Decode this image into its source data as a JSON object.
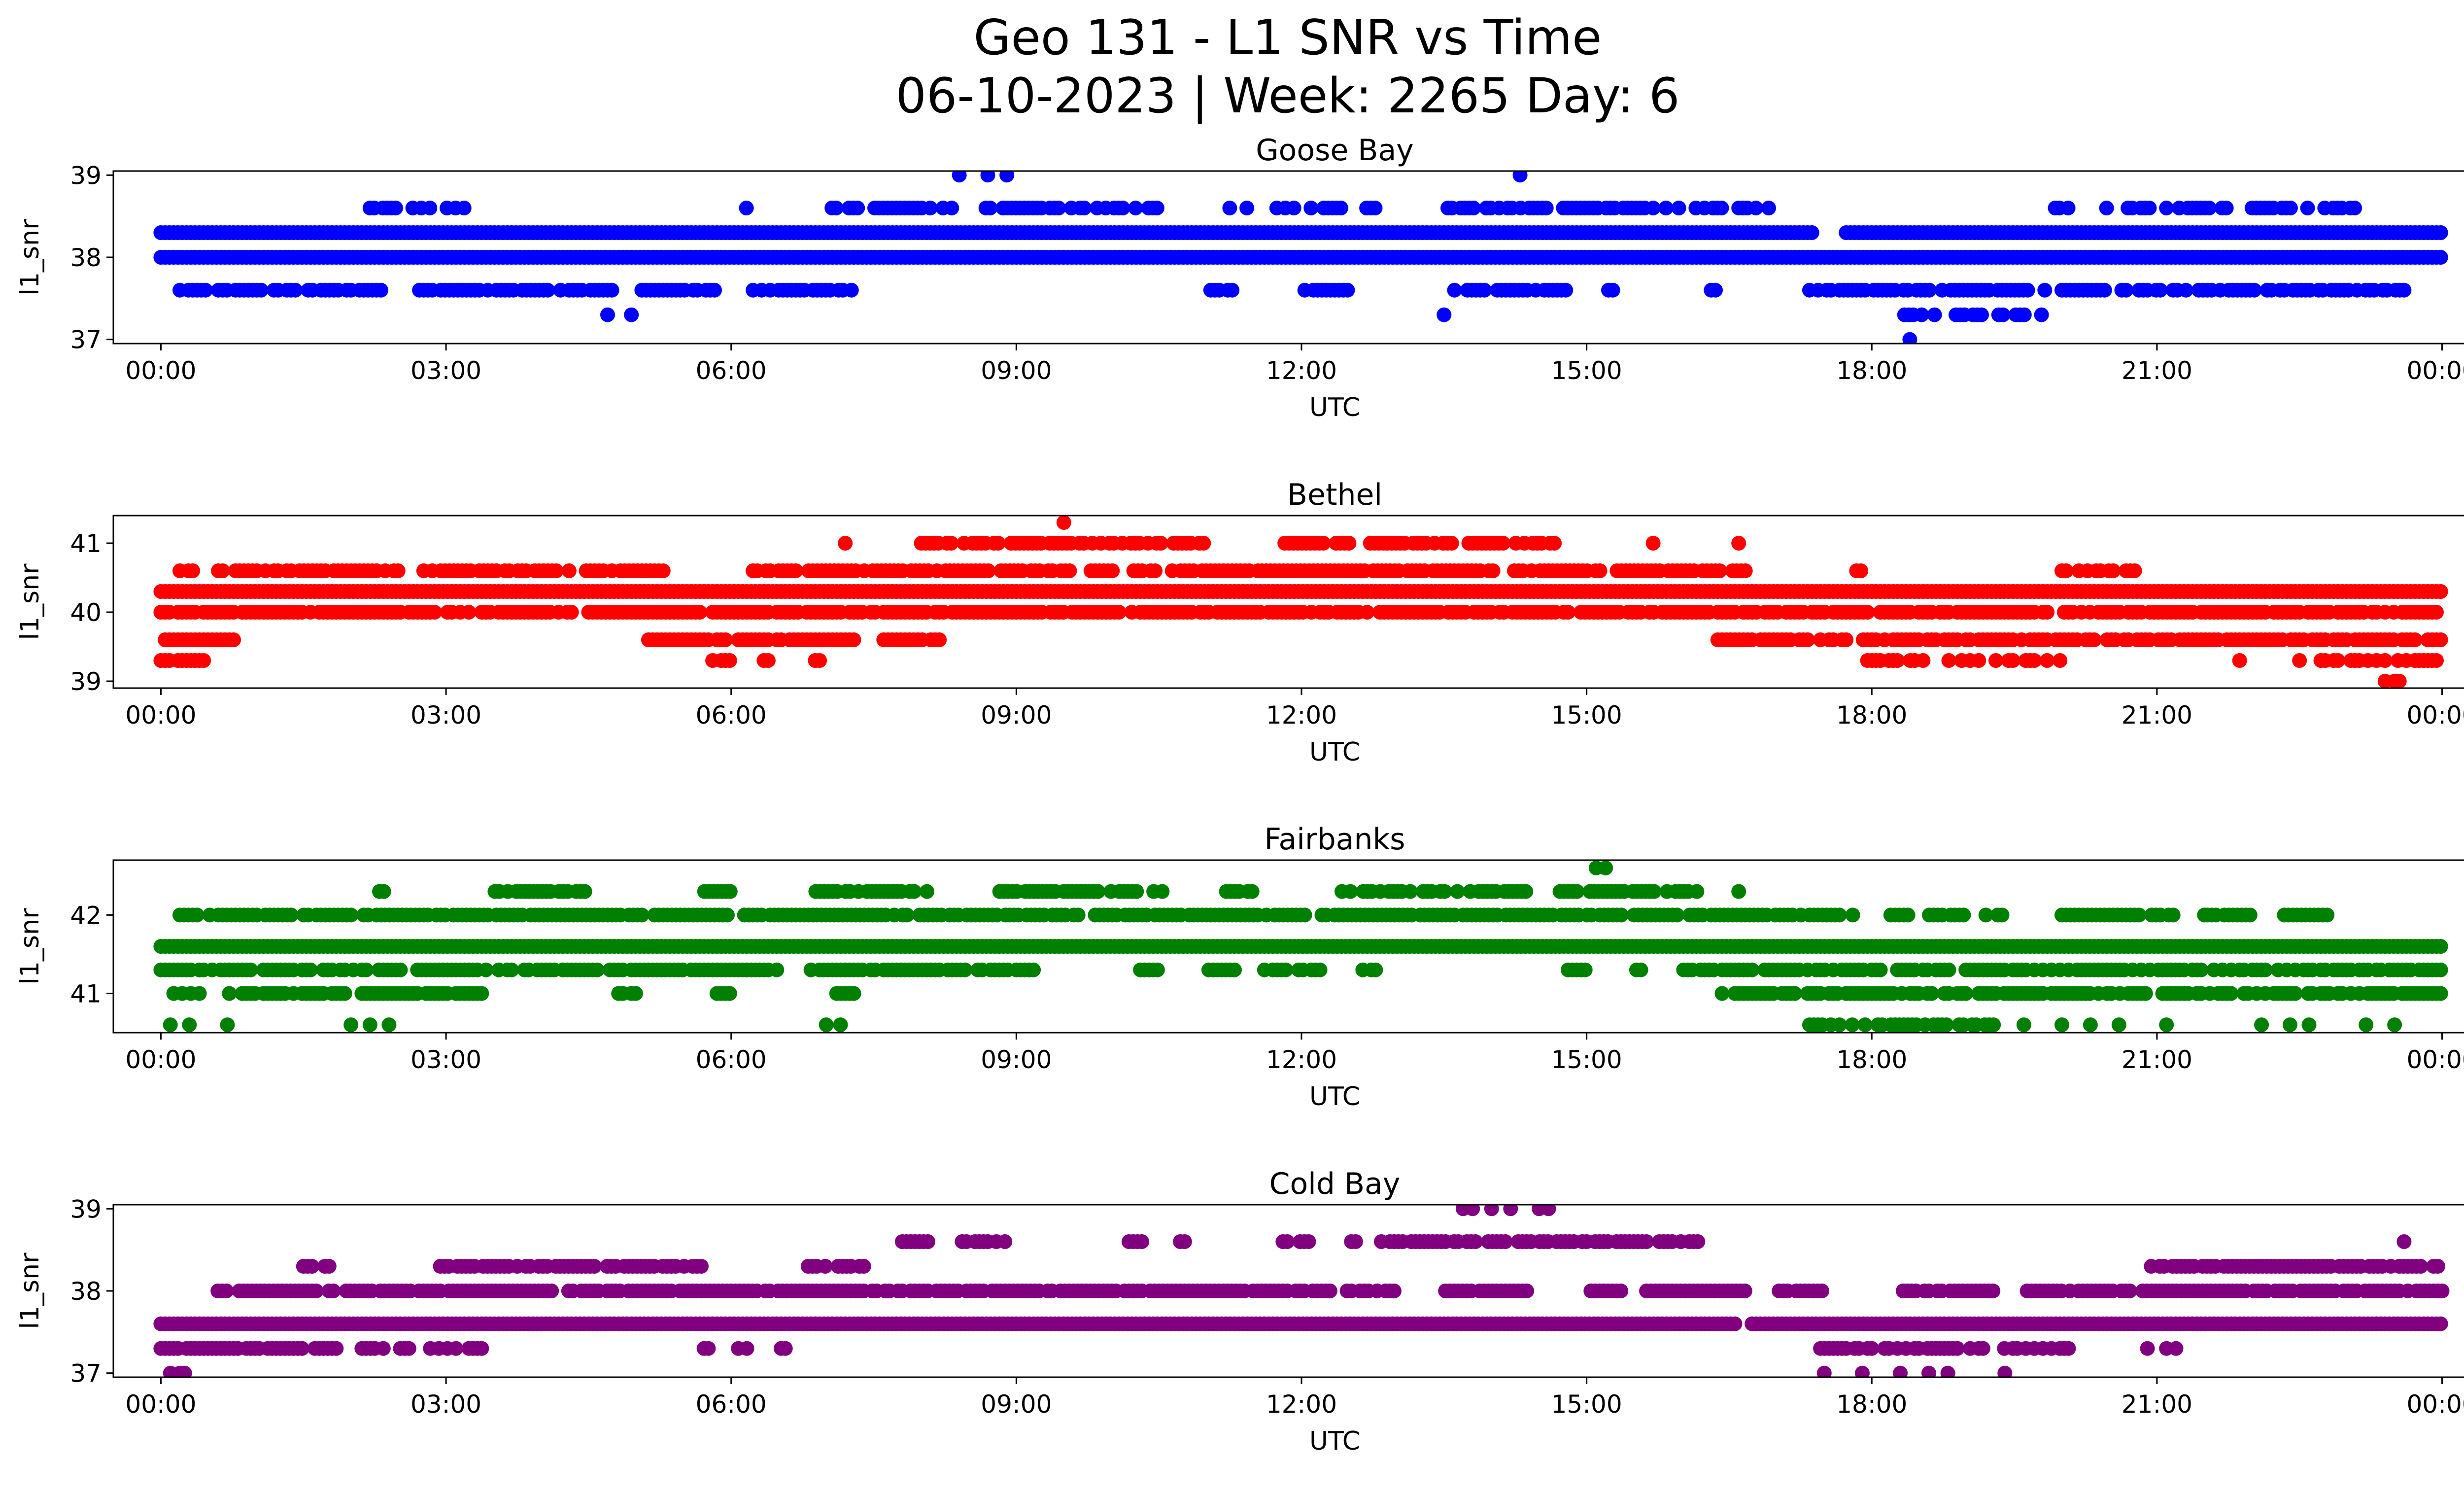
{
  "figure": {
    "title_line1": "Geo 131 - L1 SNR vs Time",
    "title_line2": "06-10-2023 | Week: 2265 Day: 6"
  },
  "chart_data": [
    {
      "type": "scatter",
      "title": "Goose Bay",
      "xlabel": "UTC",
      "ylabel": "l1_snr",
      "xlim_hours": [
        -0.5,
        25.2
      ],
      "ylim": [
        36.95,
        39.05
      ],
      "yticks": [
        37,
        38,
        39
      ],
      "xticks": [
        "00:00",
        "03:00",
        "06:00",
        "09:00",
        "12:00",
        "15:00",
        "18:00",
        "21:00",
        "00:00"
      ],
      "color": "#0000ff",
      "bands": [
        {
          "y": 38.0,
          "from": 0.0,
          "to": 24.0,
          "gaps": []
        },
        {
          "y": 38.3,
          "from": 0.0,
          "to": 24.0,
          "gaps": [
            [
              17.4,
              17.7
            ]
          ]
        },
        {
          "y": 37.6,
          "from": 0.2,
          "to": 23.6,
          "gaps": [
            [
              2.4,
              2.7
            ],
            [
              5.9,
              6.2
            ],
            [
              7.3,
              9.1
            ],
            [
              9.2,
              10.2
            ],
            [
              10.3,
              11.0
            ],
            [
              11.3,
              12.0
            ],
            [
              12.5,
              13.5
            ],
            [
              14.8,
              15.2
            ],
            [
              15.3,
              16.3
            ],
            [
              16.4,
              17.2
            ]
          ],
          "density": 0.75
        },
        {
          "y": 38.6,
          "from": 2.2,
          "to": 23.1,
          "gaps": [
            [
              3.2,
              5.9
            ],
            [
              6.2,
              7.0
            ],
            [
              10.5,
              11.2
            ],
            [
              12.8,
              13.5
            ],
            [
              17.0,
              19.9
            ],
            [
              20.2,
              20.4
            ],
            [
              21.8,
              22.0
            ]
          ],
          "density": 0.6
        },
        {
          "y": 37.3,
          "from": 18.3,
          "to": 19.9,
          "gaps": [],
          "density": 0.6
        }
      ],
      "extra_points": [
        [
          4.7,
          37.3
        ],
        [
          4.95,
          37.3
        ],
        [
          13.5,
          37.3
        ],
        [
          18.4,
          37.0
        ],
        [
          8.4,
          39.0
        ],
        [
          8.7,
          39.0
        ],
        [
          8.9,
          39.0
        ],
        [
          14.3,
          39.0
        ]
      ]
    },
    {
      "type": "scatter",
      "title": "Bethel",
      "xlabel": "UTC",
      "ylabel": "l1_snr",
      "xlim_hours": [
        -0.5,
        25.2
      ],
      "ylim": [
        38.9,
        41.4
      ],
      "yticks": [
        39,
        40,
        41
      ],
      "xticks": [
        "00:00",
        "03:00",
        "06:00",
        "09:00",
        "12:00",
        "15:00",
        "18:00",
        "21:00",
        "00:00"
      ],
      "color": "#ff0000",
      "bands": [
        {
          "y": 40.3,
          "from": 0.0,
          "to": 24.0,
          "gaps": []
        },
        {
          "y": 40.0,
          "from": 0.0,
          "to": 24.0,
          "gaps": [],
          "density": 0.85
        },
        {
          "y": 40.6,
          "from": 0.2,
          "to": 20.8,
          "gaps": [
            [
              0.35,
              0.6
            ],
            [
              2.5,
              2.7
            ],
            [
              5.3,
              6.2
            ],
            [
              16.7,
              17.8
            ],
            [
              17.9,
              20.0
            ]
          ],
          "density": 0.8
        },
        {
          "y": 39.6,
          "from": 0.0,
          "to": 24.0,
          "gaps": [
            [
              0.8,
              5.1
            ],
            [
              7.3,
              7.6
            ],
            [
              8.2,
              16.3
            ]
          ],
          "density": 0.85
        },
        {
          "y": 39.3,
          "from": 0.0,
          "to": 24.0,
          "gaps": [
            [
              0.5,
              5.8
            ],
            [
              6.0,
              6.3
            ],
            [
              6.5,
              6.8
            ],
            [
              7.0,
              17.9
            ],
            [
              18.6,
              18.8
            ],
            [
              20.0,
              21.8
            ],
            [
              21.9,
              22.4
            ]
          ],
          "density": 0.6
        },
        {
          "y": 41.0,
          "from": 8.0,
          "to": 14.7,
          "gaps": [
            [
              11.0,
              11.8
            ],
            [
              12.5,
              12.7
            ]
          ],
          "density": 0.75
        }
      ],
      "extra_points": [
        [
          7.2,
          41.0
        ],
        [
          12.9,
          41.0
        ],
        [
          15.7,
          41.0
        ],
        [
          16.6,
          41.0
        ],
        [
          9.5,
          41.3
        ],
        [
          23.4,
          39.0
        ],
        [
          23.5,
          39.0
        ],
        [
          23.55,
          39.0
        ]
      ]
    },
    {
      "type": "scatter",
      "title": "Fairbanks",
      "xlabel": "UTC",
      "ylabel": "l1_snr",
      "xlim_hours": [
        -0.5,
        25.2
      ],
      "ylim": [
        40.5,
        42.7
      ],
      "yticks": [
        41,
        42
      ],
      "xticks": [
        "00:00",
        "03:00",
        "06:00",
        "09:00",
        "12:00",
        "15:00",
        "18:00",
        "21:00",
        "00:00"
      ],
      "color": "#008000",
      "bands": [
        {
          "y": 41.6,
          "from": 0.0,
          "to": 24.0,
          "gaps": []
        },
        {
          "y": 41.3,
          "from": 0.0,
          "to": 24.0,
          "gaps": [
            [
              6.5,
              6.8
            ],
            [
              9.2,
              10.3
            ],
            [
              10.5,
              11.0
            ],
            [
              11.3,
              11.6
            ],
            [
              12.2,
              12.6
            ],
            [
              12.8,
              14.8
            ],
            [
              15.0,
              15.5
            ],
            [
              15.6,
              16.0
            ]
          ],
          "density": 0.8
        },
        {
          "y": 42.0,
          "from": 0.2,
          "to": 22.8,
          "gaps": [
            [
              0.4,
              0.5
            ],
            [
              1.4,
              1.5
            ],
            [
              2.0,
              2.1
            ],
            [
              6.0,
              6.1
            ],
            [
              17.7,
              18.2
            ],
            [
              18.4,
              18.6
            ],
            [
              19.0,
              19.3
            ],
            [
              19.4,
              20.0
            ],
            [
              21.2,
              21.5
            ],
            [
              22.0,
              22.3
            ]
          ],
          "density": 0.85
        },
        {
          "y": 41.0,
          "from": 0.0,
          "to": 24.0,
          "gaps": [
            [
              0.5,
              0.7
            ],
            [
              3.4,
              4.8
            ],
            [
              5.0,
              5.8
            ],
            [
              6.1,
              7.0
            ],
            [
              7.3,
              16.4
            ]
          ],
          "density": 0.75
        },
        {
          "y": 42.3,
          "from": 2.3,
          "to": 16.2,
          "gaps": [
            [
              2.4,
              3.5
            ],
            [
              4.5,
              5.7
            ],
            [
              6.0,
              6.8
            ],
            [
              8.1,
              8.8
            ],
            [
              10.6,
              11.2
            ],
            [
              11.6,
              12.3
            ],
            [
              14.4,
              14.7
            ],
            [
              14.9,
              15.0
            ]
          ],
          "density": 0.75
        },
        {
          "y": 40.6,
          "from": 17.3,
          "to": 19.3,
          "gaps": [],
          "density": 0.7
        }
      ],
      "extra_points": [
        [
          0.1,
          40.6
        ],
        [
          0.3,
          40.6
        ],
        [
          0.7,
          40.6
        ],
        [
          2.0,
          40.6
        ],
        [
          2.2,
          40.6
        ],
        [
          2.4,
          40.6
        ],
        [
          7.0,
          40.6
        ],
        [
          7.15,
          40.6
        ],
        [
          19.6,
          40.6
        ],
        [
          20.0,
          40.6
        ],
        [
          20.3,
          40.6
        ],
        [
          20.6,
          40.6
        ],
        [
          21.1,
          40.6
        ],
        [
          22.1,
          40.6
        ],
        [
          22.4,
          40.6
        ],
        [
          22.6,
          40.6
        ],
        [
          23.2,
          40.6
        ],
        [
          23.5,
          40.6
        ],
        [
          15.1,
          42.6
        ],
        [
          15.2,
          42.6
        ],
        [
          2.3,
          42.3
        ],
        [
          16.6,
          42.3
        ],
        [
          17.8,
          42.0
        ],
        [
          19.2,
          42.0
        ],
        [
          21.5,
          42.0
        ]
      ]
    },
    {
      "type": "scatter",
      "title": "Cold Bay",
      "xlabel": "UTC",
      "ylabel": "l1_snr",
      "xlim_hours": [
        -0.5,
        25.2
      ],
      "ylim": [
        36.95,
        39.05
      ],
      "yticks": [
        37,
        38,
        39
      ],
      "xticks": [
        "00:00",
        "03:00",
        "06:00",
        "09:00",
        "12:00",
        "15:00",
        "18:00",
        "21:00",
        "00:00"
      ],
      "color": "#800080",
      "bands": [
        {
          "y": 37.6,
          "from": 0.0,
          "to": 24.0,
          "gaps": [
            [
              16.6,
              16.7
            ]
          ]
        },
        {
          "y": 38.0,
          "from": 0.6,
          "to": 24.0,
          "gaps": [
            [
              0.7,
              0.8
            ],
            [
              13.0,
              13.5
            ],
            [
              14.4,
              15.0
            ],
            [
              15.4,
              15.6
            ],
            [
              16.7,
              17.0
            ],
            [
              17.5,
              18.3
            ],
            [
              19.3,
              19.6
            ]
          ],
          "density": 0.9
        },
        {
          "y": 37.3,
          "from": 0.0,
          "to": 20.1,
          "gaps": [
            [
              1.5,
              1.6
            ],
            [
              1.9,
              2.1
            ],
            [
              2.4,
              2.5
            ],
            [
              3.4,
              5.7
            ],
            [
              5.8,
              6.0
            ],
            [
              6.2,
              6.5
            ],
            [
              6.6,
              17.3
            ]
          ],
          "density": 0.7
        },
        {
          "y": 38.3,
          "from": 1.5,
          "to": 24.0,
          "gaps": [
            [
              1.8,
              2.9
            ],
            [
              5.7,
              6.8
            ],
            [
              7.0,
              7.1
            ],
            [
              7.4,
              17.0
            ],
            [
              17.0,
              20.9
            ]
          ],
          "density": 0.75
        },
        {
          "y": 38.6,
          "from": 7.8,
          "to": 16.2,
          "gaps": [
            [
              8.1,
              8.4
            ],
            [
              8.9,
              10.1
            ],
            [
              10.4,
              10.7
            ],
            [
              10.8,
              11.8
            ],
            [
              12.1,
              12.4
            ],
            [
              12.6,
              12.8
            ]
          ],
          "density": 0.8
        }
      ],
      "extra_points": [
        [
          0.1,
          37.0
        ],
        [
          0.2,
          37.0
        ],
        [
          0.25,
          37.0
        ],
        [
          17.5,
          37.0
        ],
        [
          17.9,
          37.0
        ],
        [
          18.3,
          37.0
        ],
        [
          18.6,
          37.0
        ],
        [
          18.8,
          37.0
        ],
        [
          19.4,
          37.0
        ],
        [
          13.7,
          39.0
        ],
        [
          13.8,
          39.0
        ],
        [
          14.0,
          39.0
        ],
        [
          14.2,
          39.0
        ],
        [
          14.5,
          39.0
        ],
        [
          14.6,
          39.0
        ],
        [
          23.6,
          38.6
        ],
        [
          20.9,
          37.3
        ],
        [
          21.1,
          37.3
        ],
        [
          21.2,
          37.3
        ]
      ]
    }
  ]
}
